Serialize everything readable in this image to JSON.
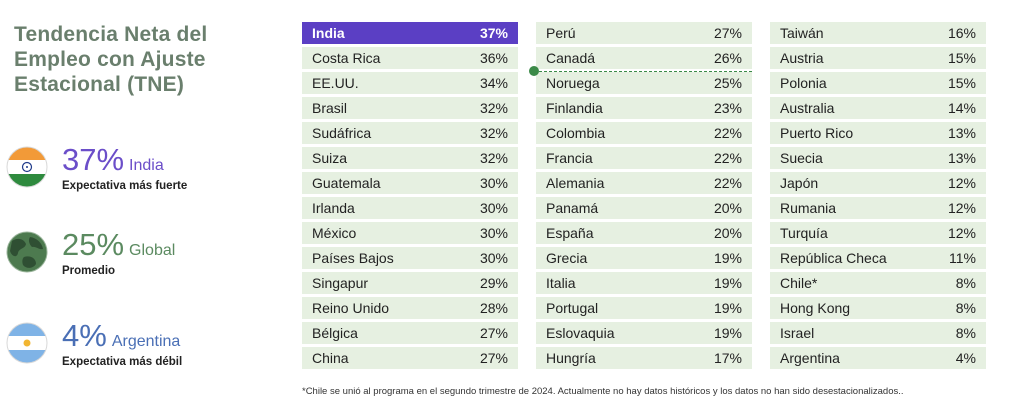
{
  "title": "Tendencia Neta del Empleo con Ajuste Estacional (TNE)",
  "highlights": [
    {
      "value": "37%",
      "label": "India",
      "caption": "Expectativa más fuerte",
      "icon": "india-flag-icon"
    },
    {
      "value": "25%",
      "label": "Global",
      "caption": "Promedio",
      "icon": "globe-icon"
    },
    {
      "value": "4%",
      "label": "Argentina",
      "caption": "Expectativa más débil",
      "icon": "argentina-flag-icon"
    }
  ],
  "colors": {
    "india": "#5b3fc4",
    "argentina": "#4a6fb5",
    "global_line": "#3b8a48",
    "row_bg": "#e6f0e1",
    "title": "#6a7f6d"
  },
  "chart_data": {
    "type": "table",
    "global_average": 25,
    "columns": [
      [
        {
          "country": "India",
          "value": "37%",
          "highlight": "india"
        },
        {
          "country": "Costa Rica",
          "value": "36%"
        },
        {
          "country": "EE.UU.",
          "value": "34%"
        },
        {
          "country": "Brasil",
          "value": "32%"
        },
        {
          "country": "Sudáfrica",
          "value": "32%"
        },
        {
          "country": "Suiza",
          "value": "32%"
        },
        {
          "country": "Guatemala",
          "value": "30%"
        },
        {
          "country": "Irlanda",
          "value": "30%"
        },
        {
          "country": "México",
          "value": "30%"
        },
        {
          "country": "Países Bajos",
          "value": "30%"
        },
        {
          "country": "Singapur",
          "value": "29%"
        },
        {
          "country": "Reino Unido",
          "value": "28%"
        },
        {
          "country": "Bélgica",
          "value": "27%"
        },
        {
          "country": "China",
          "value": "27%"
        }
      ],
      [
        {
          "country": "Perú",
          "value": "27%"
        },
        {
          "country": "Canadá",
          "value": "26%"
        },
        {
          "country": "Noruega",
          "value": "25%"
        },
        {
          "country": "Finlandia",
          "value": "23%"
        },
        {
          "country": "Colombia",
          "value": "22%"
        },
        {
          "country": "Francia",
          "value": "22%"
        },
        {
          "country": "Alemania",
          "value": "22%"
        },
        {
          "country": "Panamá",
          "value": "20%"
        },
        {
          "country": "España",
          "value": "20%"
        },
        {
          "country": "Grecia",
          "value": "19%"
        },
        {
          "country": "Italia",
          "value": "19%"
        },
        {
          "country": "Portugal",
          "value": "19%"
        },
        {
          "country": "Eslovaquia",
          "value": "19%"
        },
        {
          "country": "Hungría",
          "value": "17%"
        }
      ],
      [
        {
          "country": "Taiwán",
          "value": "16%"
        },
        {
          "country": "Austria",
          "value": "15%"
        },
        {
          "country": "Polonia",
          "value": "15%"
        },
        {
          "country": "Australia",
          "value": "14%"
        },
        {
          "country": "Puerto Rico",
          "value": "13%"
        },
        {
          "country": "Suecia",
          "value": "13%"
        },
        {
          "country": "Japón",
          "value": "12%"
        },
        {
          "country": "Rumania",
          "value": "12%"
        },
        {
          "country": "Turquía",
          "value": "12%"
        },
        {
          "country": "República Checa",
          "value": "11%"
        },
        {
          "country": "Chile*",
          "value": "8%"
        },
        {
          "country": "Hong Kong",
          "value": "8%"
        },
        {
          "country": "Israel",
          "value": "8%"
        },
        {
          "country": "Argentina",
          "value": "4%",
          "highlight": "argentina"
        }
      ]
    ]
  },
  "footnote": "*Chile se unió al programa en el segundo trimestre de 2024. Actualmente no hay datos históricos y los datos no han sido desestacionalizados.."
}
